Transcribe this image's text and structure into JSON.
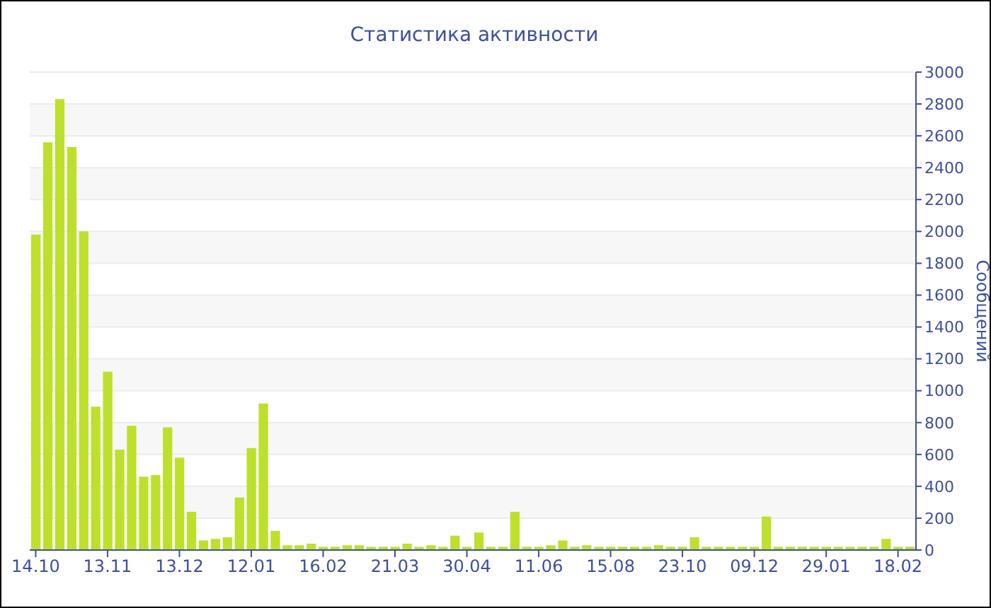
{
  "chart_data": {
    "type": "bar",
    "title": "Статистика активности",
    "ylabel": "Сообщений",
    "categories": [
      "14.10",
      null,
      null,
      null,
      null,
      null,
      "13.11",
      null,
      null,
      null,
      null,
      null,
      "13.12",
      null,
      null,
      null,
      null,
      null,
      "12.01",
      null,
      null,
      null,
      null,
      null,
      "16.02",
      null,
      null,
      null,
      null,
      null,
      "21.03",
      null,
      null,
      null,
      null,
      null,
      "30.04",
      null,
      null,
      null,
      null,
      null,
      "11.06",
      null,
      null,
      null,
      null,
      null,
      "15.08",
      null,
      null,
      null,
      null,
      null,
      "23.10",
      null,
      null,
      null,
      null,
      null,
      "09.12",
      null,
      null,
      null,
      null,
      null,
      "29.01",
      null,
      null,
      null,
      null,
      null,
      "18.02",
      null
    ],
    "values": [
      1980,
      2560,
      2830,
      2530,
      2000,
      900,
      1120,
      630,
      780,
      460,
      470,
      770,
      580,
      240,
      60,
      70,
      80,
      330,
      640,
      920,
      120,
      30,
      30,
      40,
      20,
      20,
      30,
      30,
      20,
      20,
      20,
      40,
      20,
      30,
      20,
      90,
      20,
      110,
      20,
      20,
      240,
      20,
      20,
      30,
      60,
      20,
      30,
      20,
      20,
      20,
      20,
      20,
      30,
      20,
      20,
      80,
      20,
      20,
      20,
      20,
      20,
      210,
      20,
      20,
      20,
      20,
      20,
      20,
      20,
      20,
      20,
      70,
      20,
      20
    ],
    "color": "#bde02c",
    "ylim": [
      0,
      3000
    ],
    "yticks": [
      0,
      200,
      400,
      600,
      800,
      1000,
      1200,
      1400,
      1600,
      1800,
      2000,
      2200,
      2400,
      2600,
      2800,
      3000
    ],
    "grid": "y"
  }
}
